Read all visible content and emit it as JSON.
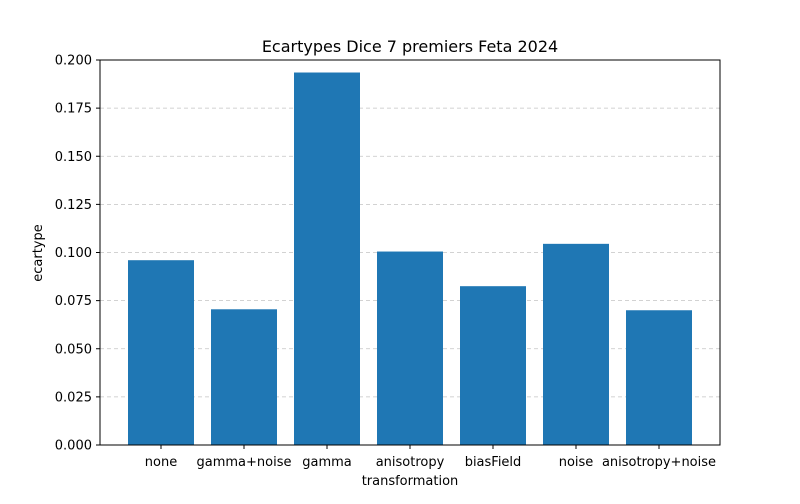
{
  "chart_data": {
    "type": "bar",
    "title": "Ecartypes Dice 7 premiers Feta 2024",
    "xlabel": "transformation",
    "ylabel": "ecartype",
    "categories": [
      "none",
      "gamma+noise",
      "gamma",
      "anisotropy",
      "biasField",
      "noise",
      "anisotropy+noise"
    ],
    "values": [
      0.096,
      0.0705,
      0.1935,
      0.1005,
      0.0825,
      0.1045,
      0.07
    ],
    "ylim": [
      0,
      0.2
    ],
    "yticks": [
      "0.000",
      "0.025",
      "0.050",
      "0.075",
      "0.100",
      "0.125",
      "0.150",
      "0.175",
      "0.200"
    ],
    "grid": "y-dashed",
    "bar_color": "#1f77b4",
    "legend": "none"
  }
}
